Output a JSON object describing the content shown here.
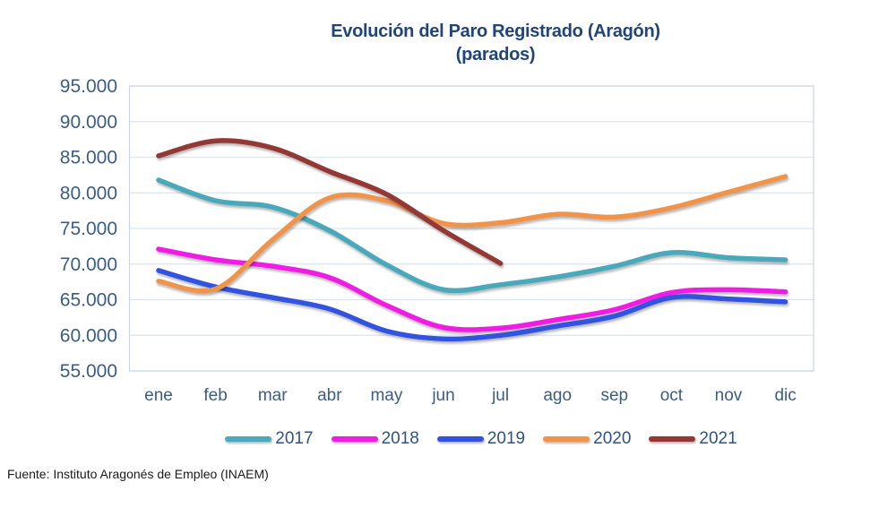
{
  "title": {
    "line1": "Evolución del Paro Registrado (Aragón)",
    "line2": "(parados)"
  },
  "footer": "Fuente: Instituto Aragonés de Empleo (INAEM)",
  "colors": {
    "title_text": "#1F4579",
    "axis_text": "#3C5C84",
    "legend_text": "#2E5380",
    "gridline": "#DAE5F1",
    "plot_frame": "#C9D7E5",
    "background": "#FFFFFF"
  },
  "chart_data": {
    "type": "line",
    "title": "Evolución del Paro Registrado (Aragón) (parados)",
    "xlabel": "",
    "ylabel": "",
    "categories": [
      "ene",
      "feb",
      "mar",
      "abr",
      "may",
      "jun",
      "jul",
      "ago",
      "sep",
      "oct",
      "nov",
      "dic"
    ],
    "y_tick_labels": [
      "95.000",
      "90.000",
      "85.000",
      "80.000",
      "75.000",
      "70.000",
      "65.000",
      "60.000",
      "55.000"
    ],
    "ylim": [
      55000,
      95000
    ],
    "y_step": 5000,
    "grid": true,
    "legend_position": "bottom",
    "smooth_lines": true,
    "series": [
      {
        "name": "2017",
        "color": "#4AA9BB",
        "values": [
          81800,
          78900,
          78000,
          74700,
          69900,
          66400,
          67100,
          68200,
          69700,
          71600,
          70900,
          70600
        ]
      },
      {
        "name": "2018",
        "color": "#F11DE4",
        "values": [
          72100,
          70600,
          69700,
          68100,
          64200,
          61100,
          61000,
          62200,
          63600,
          66000,
          66400,
          66100
        ]
      },
      {
        "name": "2019",
        "color": "#3352E0",
        "values": [
          69100,
          66800,
          65300,
          63700,
          60600,
          59500,
          60000,
          61300,
          62700,
          65300,
          65100,
          64700
        ]
      },
      {
        "name": "2020",
        "color": "#F0944C",
        "values": [
          67600,
          66500,
          73400,
          79300,
          78900,
          75700,
          75800,
          77000,
          76600,
          77900,
          80100,
          82300
        ]
      },
      {
        "name": "2021",
        "color": "#943735",
        "values": [
          85200,
          87300,
          86300,
          83000,
          79800,
          74700,
          70100,
          null,
          null,
          null,
          null,
          null
        ]
      }
    ]
  }
}
